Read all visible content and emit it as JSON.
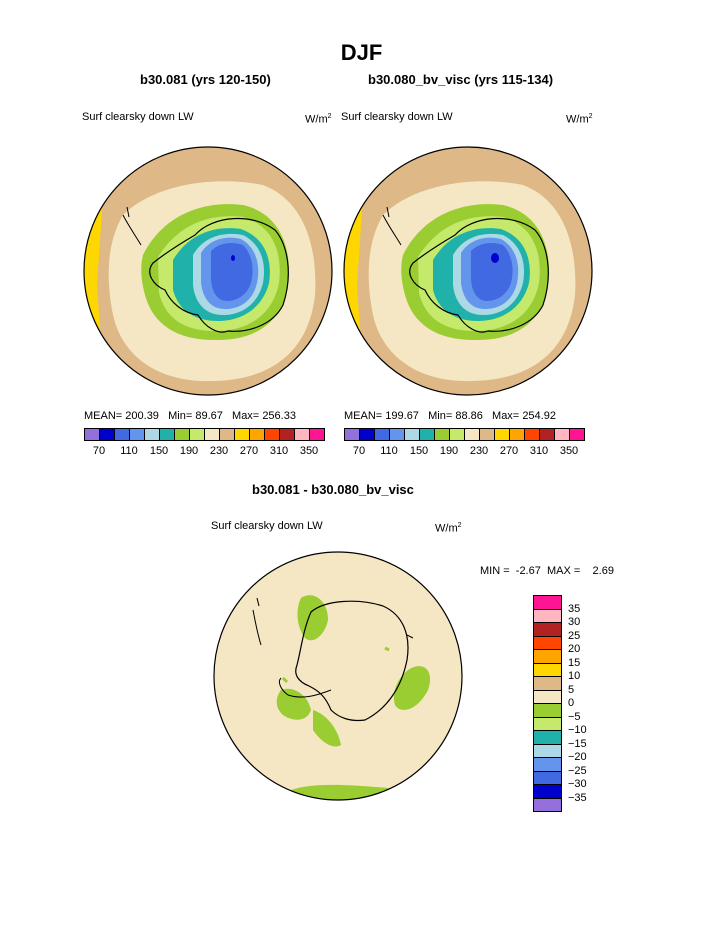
{
  "title": "DJF",
  "panels": [
    {
      "heading": "b30.081 (yrs 120-150)",
      "variable": "Surf clearsky down LW",
      "units_base": "W/m",
      "units_exp": "2",
      "stats": {
        "mean_label": "MEAN=",
        "mean": "200.39",
        "min_label": "Min=",
        "min": "89.67",
        "max_label": "Max=",
        "max": "256.33"
      }
    },
    {
      "heading": "b30.080_bv_visc (yrs 115-134)",
      "variable": "Surf clearsky down LW",
      "units_base": "W/m",
      "units_exp": "2",
      "stats": {
        "mean_label": "MEAN=",
        "mean": "199.67",
        "min_label": "Min=",
        "min": "88.86",
        "max_label": "Max=",
        "max": "254.92"
      }
    }
  ],
  "colorbar": {
    "colors": [
      "#9370db",
      "#0000cd",
      "#4169e1",
      "#6495ed",
      "#add8e6",
      "#20b2aa",
      "#9acd32",
      "#c5e96b",
      "#f5e6c4",
      "#deb887",
      "#ffd700",
      "#ffa500",
      "#ff4500",
      "#b22222",
      "#ffb6c1",
      "#ff1493"
    ],
    "labels": [
      "70",
      "110",
      "150",
      "190",
      "230",
      "270",
      "310",
      "350"
    ]
  },
  "difference": {
    "heading": "b30.081 - b30.080_bv_visc",
    "variable": "Surf clearsky down LW",
    "units_base": "W/m",
    "units_exp": "2",
    "min_label": "MIN =",
    "min": "-2.67",
    "max_label": "MAX =",
    "max": "2.69",
    "colorbar": {
      "colors": [
        "#ff1493",
        "#ffb6c1",
        "#b22222",
        "#ff4500",
        "#ffa500",
        "#ffd700",
        "#deb887",
        "#f5e6c4",
        "#9acd32",
        "#c5e96b",
        "#20b2aa",
        "#add8e6",
        "#6495ed",
        "#4169e1",
        "#0000cd",
        "#9370db"
      ],
      "labels": [
        "35",
        "30",
        "25",
        "20",
        "15",
        "10",
        "5",
        "0",
        "−5",
        "−10",
        "−15",
        "−20",
        "−25",
        "−30",
        "−35"
      ]
    }
  }
}
